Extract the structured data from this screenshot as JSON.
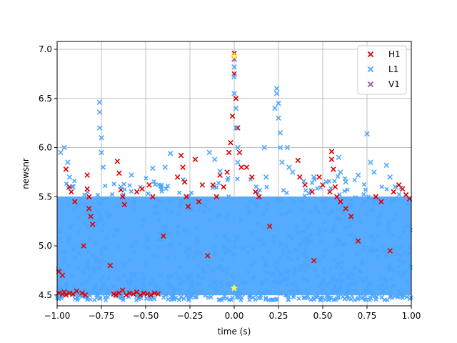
{
  "chart_data": {
    "type": "scatter",
    "xlabel": "time (s)",
    "ylabel": "newsnr",
    "xlim": [
      -1.0,
      1.0
    ],
    "ylim": [
      4.39,
      7.08
    ],
    "xticks": [
      -1.0,
      -0.75,
      -0.5,
      -0.25,
      0.0,
      0.25,
      0.5,
      0.75,
      1.0
    ],
    "xtick_labels": [
      "−1.00",
      "−0.75",
      "−0.50",
      "−0.25",
      "0.00",
      "0.25",
      "0.50",
      "0.75",
      "1.00"
    ],
    "yticks": [
      4.5,
      5.0,
      5.5,
      6.0,
      6.5,
      7.0
    ],
    "ytick_labels": [
      "4.5",
      "5.0",
      "5.5",
      "6.0",
      "6.5",
      "7.0"
    ],
    "grid": true,
    "legend_position": "top-right",
    "marker": "x",
    "series": [
      {
        "name": "H1",
        "color": "#e00000",
        "points": [
          [
            -0.99,
            4.52
          ],
          [
            -0.97,
            4.51
          ],
          [
            -0.96,
            4.53
          ],
          [
            -0.95,
            4.5
          ],
          [
            -0.93,
            4.52
          ],
          [
            -0.91,
            4.51
          ],
          [
            -0.89,
            4.54
          ],
          [
            -0.99,
            4.74
          ],
          [
            -0.97,
            4.7
          ],
          [
            -0.95,
            5.78
          ],
          [
            -0.93,
            5.6
          ],
          [
            -0.92,
            5.55
          ],
          [
            -0.9,
            5.45
          ],
          [
            -0.86,
            4.52
          ],
          [
            -0.84,
            4.5
          ],
          [
            -0.83,
            5.72
          ],
          [
            -0.83,
            5.58
          ],
          [
            -0.82,
            5.5
          ],
          [
            -0.82,
            5.38
          ],
          [
            -0.81,
            5.3
          ],
          [
            -0.8,
            5.22
          ],
          [
            -0.68,
            4.51
          ],
          [
            -0.67,
            4.5
          ],
          [
            -0.65,
            4.52
          ],
          [
            -0.63,
            4.55
          ],
          [
            -0.61,
            4.5
          ],
          [
            -0.59,
            4.52
          ],
          [
            -0.57,
            4.51
          ],
          [
            -0.55,
            4.53
          ],
          [
            -0.53,
            4.5
          ],
          [
            -0.51,
            4.52
          ],
          [
            -0.49,
            4.51
          ],
          [
            -0.47,
            4.5
          ],
          [
            -0.45,
            4.52
          ],
          [
            -0.43,
            4.51
          ],
          [
            -0.66,
            5.86
          ],
          [
            -0.65,
            5.74
          ],
          [
            -0.64,
            5.57
          ],
          [
            -0.63,
            5.5
          ],
          [
            -0.62,
            5.42
          ],
          [
            -0.55,
            5.55
          ],
          [
            -0.52,
            5.58
          ],
          [
            -0.48,
            5.62
          ],
          [
            -0.46,
            5.5
          ],
          [
            -0.32,
            5.7
          ],
          [
            -0.3,
            5.92
          ],
          [
            -0.29,
            5.8
          ],
          [
            -0.28,
            5.65
          ],
          [
            -0.27,
            5.5
          ],
          [
            -0.26,
            5.4
          ],
          [
            -0.22,
            5.88
          ],
          [
            -0.2,
            5.45
          ],
          [
            -0.18,
            5.62
          ],
          [
            -0.12,
            5.62
          ],
          [
            -0.1,
            5.5
          ],
          [
            -0.08,
            5.72
          ],
          [
            -0.06,
            5.6
          ],
          [
            -0.04,
            5.75
          ],
          [
            -0.03,
            5.95
          ],
          [
            -0.02,
            6.05
          ],
          [
            -0.01,
            6.32
          ],
          [
            0.0,
            6.9
          ],
          [
            0.0,
            6.96
          ],
          [
            0.0,
            6.75
          ],
          [
            0.01,
            6.5
          ],
          [
            0.02,
            6.2
          ],
          [
            0.03,
            5.95
          ],
          [
            0.04,
            5.8
          ],
          [
            0.07,
            5.8
          ],
          [
            0.1,
            5.7
          ],
          [
            0.12,
            5.55
          ],
          [
            0.14,
            5.5
          ],
          [
            0.36,
            5.87
          ],
          [
            0.37,
            5.7
          ],
          [
            0.4,
            5.62
          ],
          [
            0.44,
            5.55
          ],
          [
            0.48,
            5.7
          ],
          [
            0.5,
            5.62
          ],
          [
            0.54,
            5.55
          ],
          [
            0.55,
            5.96
          ],
          [
            0.55,
            5.88
          ],
          [
            0.56,
            5.78
          ],
          [
            0.57,
            5.6
          ],
          [
            0.58,
            5.5
          ],
          [
            0.6,
            5.45
          ],
          [
            0.63,
            5.38
          ],
          [
            0.66,
            5.3
          ],
          [
            0.8,
            5.5
          ],
          [
            0.83,
            5.45
          ],
          [
            0.9,
            5.55
          ],
          [
            0.93,
            5.62
          ],
          [
            0.95,
            5.58
          ],
          [
            0.97,
            5.52
          ],
          [
            0.99,
            5.48
          ],
          [
            -0.85,
            5.0
          ],
          [
            -0.7,
            4.8
          ],
          [
            -0.4,
            5.1
          ],
          [
            -0.15,
            4.9
          ],
          [
            0.2,
            5.2
          ],
          [
            0.45,
            4.85
          ],
          [
            0.7,
            5.05
          ],
          [
            0.88,
            4.95
          ]
        ]
      },
      {
        "name": "L1",
        "color": "#4ca6ff",
        "points": [
          [
            -0.98,
            5.95
          ],
          [
            -0.96,
            6.0
          ],
          [
            -0.94,
            5.85
          ],
          [
            -0.93,
            5.7
          ],
          [
            -0.91,
            5.6
          ],
          [
            -0.76,
            6.46
          ],
          [
            -0.76,
            6.36
          ],
          [
            -0.76,
            6.2
          ],
          [
            -0.75,
            6.1
          ],
          [
            -0.75,
            5.95
          ],
          [
            -0.74,
            5.8
          ],
          [
            -0.64,
            5.6
          ],
          [
            -0.58,
            5.72
          ],
          [
            -0.46,
            5.79
          ],
          [
            -0.39,
            5.8
          ],
          [
            -0.36,
            5.94
          ],
          [
            -0.14,
            5.95
          ],
          [
            -0.11,
            5.88
          ],
          [
            -0.08,
            5.76
          ],
          [
            0.0,
            6.82
          ],
          [
            0.0,
            6.72
          ],
          [
            0.0,
            6.55
          ],
          [
            0.01,
            6.4
          ],
          [
            0.01,
            6.2
          ],
          [
            0.02,
            6.0
          ],
          [
            0.02,
            5.85
          ],
          [
            0.17,
            6.0
          ],
          [
            0.18,
            5.7
          ],
          [
            0.23,
            6.4
          ],
          [
            0.24,
            6.6
          ],
          [
            0.24,
            6.55
          ],
          [
            0.25,
            6.45
          ],
          [
            0.25,
            6.3
          ],
          [
            0.26,
            6.15
          ],
          [
            0.26,
            6.0
          ],
          [
            0.27,
            5.85
          ],
          [
            0.3,
            6.0
          ],
          [
            0.31,
            5.8
          ],
          [
            0.33,
            5.75
          ],
          [
            0.45,
            5.7
          ],
          [
            0.52,
            5.65
          ],
          [
            0.59,
            5.9
          ],
          [
            0.6,
            5.75
          ],
          [
            0.63,
            5.65
          ],
          [
            0.7,
            5.72
          ],
          [
            0.75,
            6.14
          ],
          [
            0.77,
            5.85
          ],
          [
            0.79,
            5.75
          ],
          [
            0.86,
            5.82
          ],
          [
            0.88,
            5.7
          ],
          [
            0.91,
            5.6
          ]
        ]
      },
      {
        "name": "V1",
        "color": "#9b4fc8",
        "points": [
          [
            0.0,
            6.9
          ]
        ]
      }
    ],
    "dense_band": {
      "color": "#4ca6ff",
      "y_range": [
        4.5,
        5.5
      ]
    },
    "highlight_markers": [
      {
        "x": 0.0,
        "y": 6.93,
        "color": "#ffff33",
        "shape": "star"
      },
      {
        "x": 0.0,
        "y": 4.57,
        "color": "#ffff33",
        "shape": "star"
      }
    ]
  }
}
